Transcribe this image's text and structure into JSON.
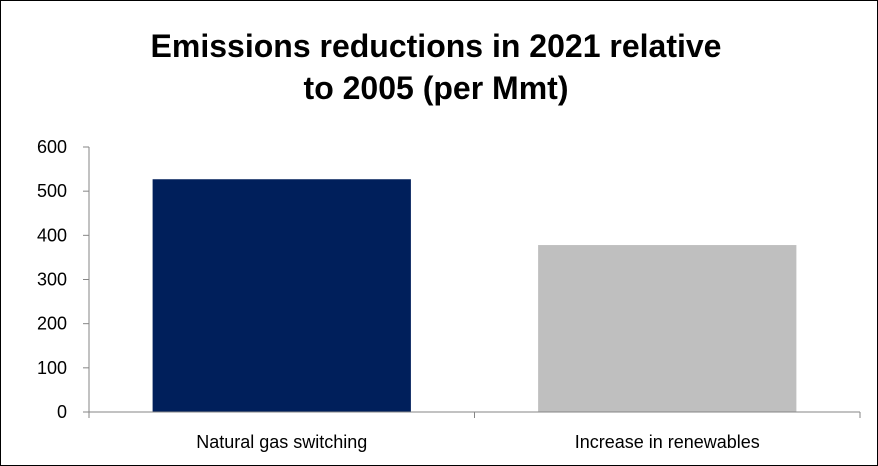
{
  "chart_data": {
    "type": "bar",
    "title_line1": "Emissions reductions in 2021 relative",
    "title_line2": "to 2005 (per Mmt)",
    "categories": [
      "Natural gas switching",
      "Increase in renewables"
    ],
    "values": [
      527,
      378
    ],
    "colors": [
      "#001f5b",
      "#bfbfbf"
    ],
    "xlabel": "",
    "ylabel": "",
    "ylim": [
      0,
      600
    ],
    "yticks": [
      "0",
      "100",
      "200",
      "300",
      "400",
      "500",
      "600"
    ],
    "grid": false,
    "legend": "none"
  }
}
